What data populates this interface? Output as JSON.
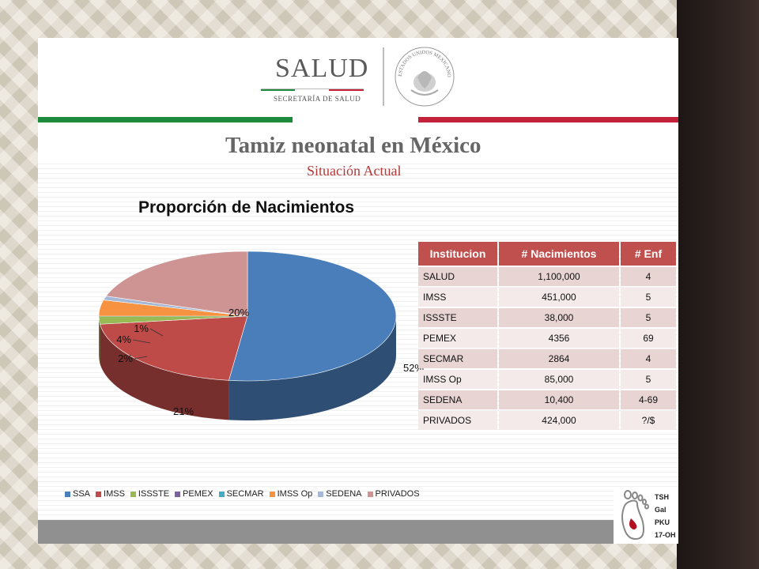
{
  "header": {
    "salud_word": "SALUD",
    "salud_sub": "SECRETARÍA DE SALUD",
    "seal_text": "ESTADOS UNIDOS MEXICANOS"
  },
  "titles": {
    "main": "Tamiz neonatal en México",
    "sub": "Situación Actual"
  },
  "colors": {
    "SSA": "#4a7ebb",
    "IMSS": "#be4b48",
    "ISSSTE": "#98b954",
    "PEMEX": "#7d60a0",
    "SECMAR": "#46aac5",
    "IMSS Op": "#f69240",
    "SEDENA": "#a5b9d6",
    "PRIVADOS": "#cd9493",
    "flag_green": "#1e8a3c",
    "flag_red": "#c4213a"
  },
  "chart_data": {
    "type": "pie",
    "title": "Proporción  de Nacimientos",
    "categories": [
      "SSA",
      "IMSS",
      "ISSSTE",
      "PEMEX",
      "SECMAR",
      "IMSS Op",
      "SEDENA",
      "PRIVADOS"
    ],
    "values": [
      52,
      21,
      2,
      0,
      0,
      4,
      1,
      20
    ],
    "data_labels": [
      "52%",
      "21%",
      "2%",
      "",
      "",
      "4%",
      "1%",
      "20%"
    ],
    "legend_position": "bottom",
    "style": "3d"
  },
  "table": {
    "headers": [
      "Institucion",
      "# Nacimientos",
      "# Enf"
    ],
    "rows": [
      [
        "SALUD",
        "1,100,000",
        "4"
      ],
      [
        "IMSS",
        "451,000",
        "5"
      ],
      [
        "ISSSTE",
        "38,000",
        "5"
      ],
      [
        "PEMEX",
        "4356",
        "69"
      ],
      [
        "SECMAR",
        "2864",
        "4"
      ],
      [
        "IMSS Op",
        "85,000",
        "5"
      ],
      [
        "SEDENA",
        "10,400",
        "4-69"
      ],
      [
        "PRIVADOS",
        "424,000",
        "?/$"
      ]
    ]
  },
  "footer_logo": {
    "lines": [
      "TSH",
      "Gal",
      "PKU",
      "17-OH"
    ]
  }
}
